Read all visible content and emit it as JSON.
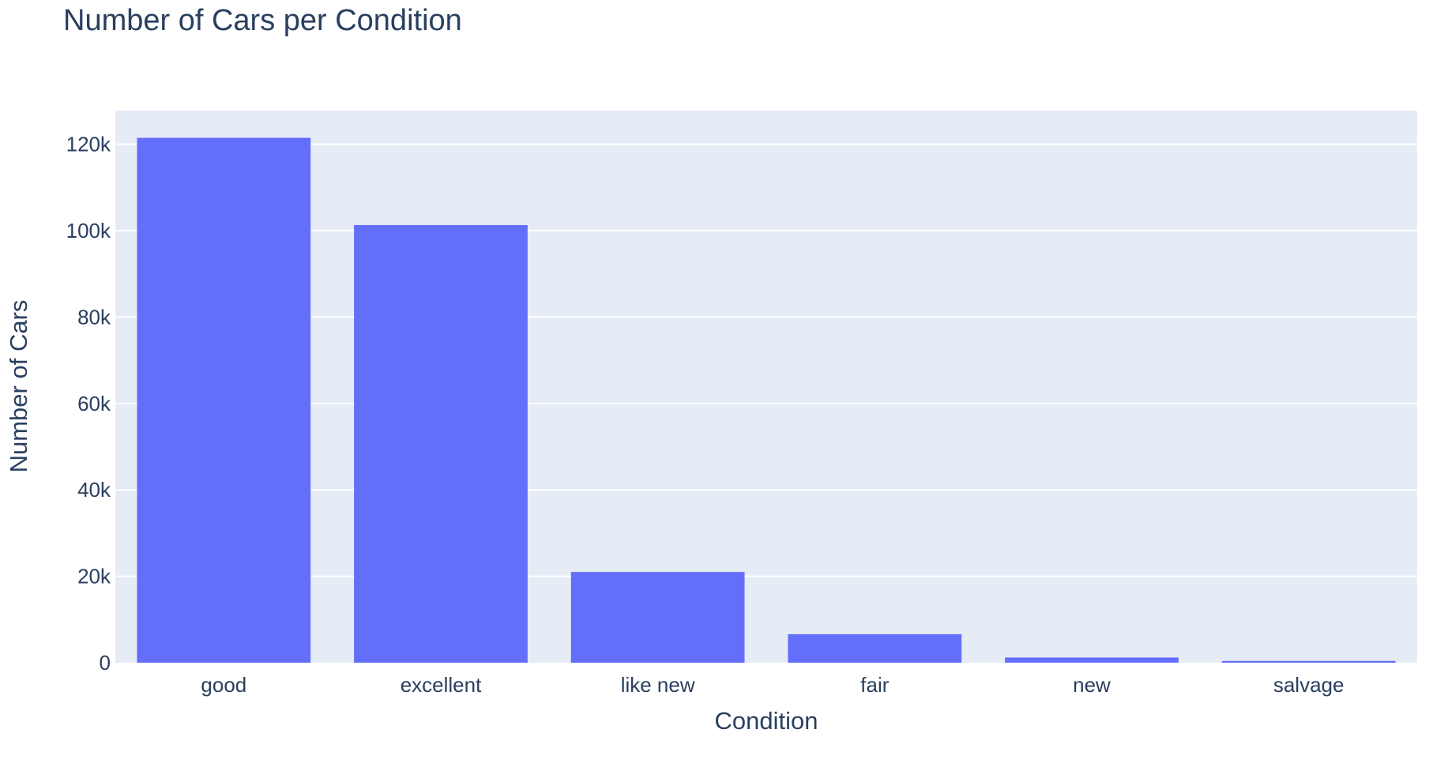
{
  "chart_data": {
    "type": "bar",
    "title": "Number of Cars per Condition",
    "xlabel": "Condition",
    "ylabel": "Number of Cars",
    "categories": [
      "good",
      "excellent",
      "like new",
      "fair",
      "new",
      "salvage"
    ],
    "values": [
      121500,
      101300,
      21000,
      6600,
      1200,
      400
    ],
    "ylim": [
      0,
      127800
    ],
    "yticks": [
      0,
      20000,
      40000,
      60000,
      80000,
      100000,
      120000
    ],
    "ytick_labels": [
      "0",
      "20k",
      "40k",
      "60k",
      "80k",
      "100k",
      "120k"
    ],
    "grid": true,
    "legend": "none",
    "colors": {
      "bar": "#636efa",
      "plot_background": "#e5ecf6",
      "gridline": "#ffffff",
      "text": "#2a3f5f"
    }
  }
}
